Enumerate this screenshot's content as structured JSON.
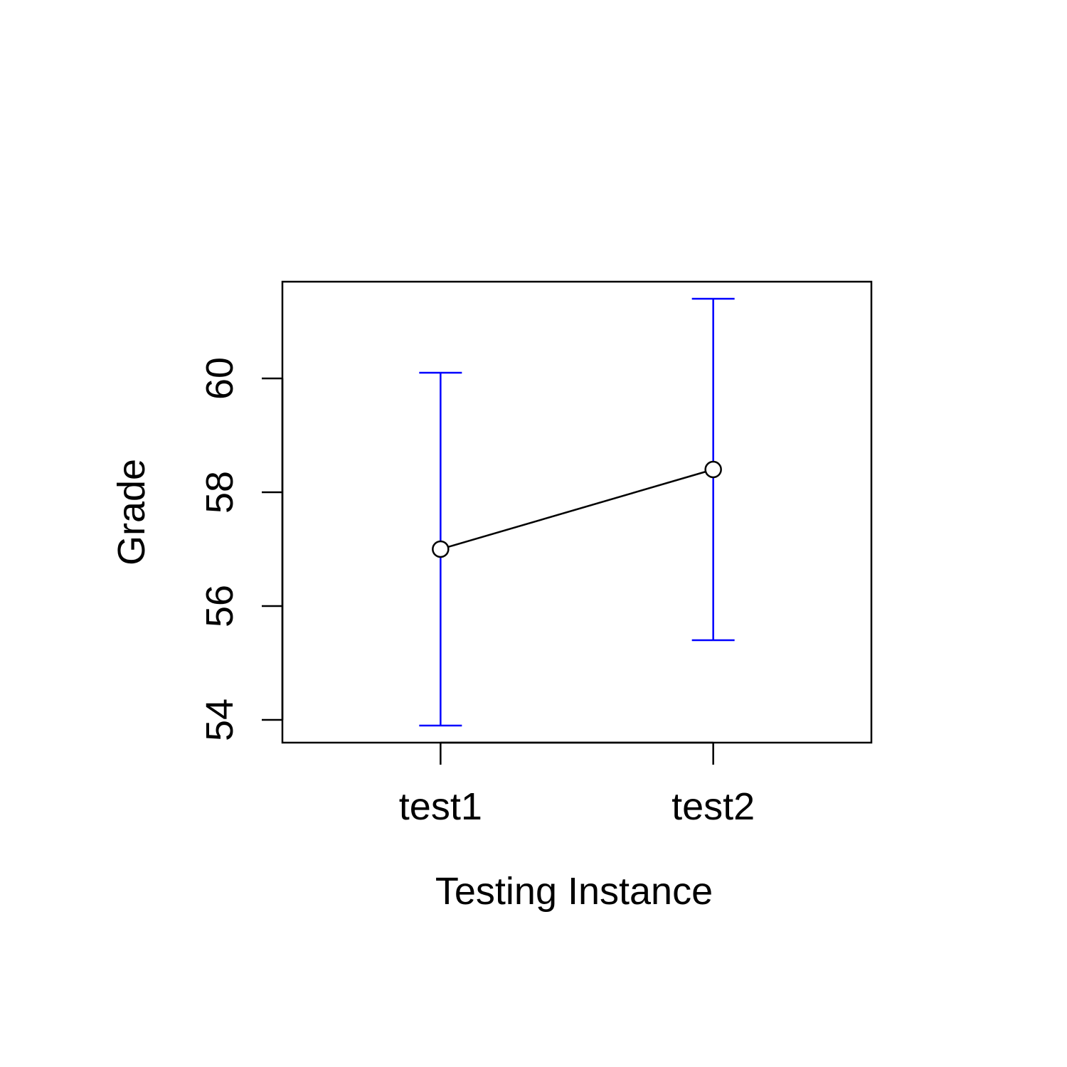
{
  "chart_data": {
    "type": "line",
    "title": "",
    "xlabel": "Testing Instance",
    "ylabel": "Grade",
    "categories": [
      "test1",
      "test2"
    ],
    "series": [
      {
        "values": [
          57.0,
          58.4
        ],
        "error_low": [
          53.9,
          55.4
        ],
        "error_high": [
          60.1,
          61.4
        ]
      }
    ],
    "yticks": [
      54,
      56,
      58,
      60
    ],
    "ylim": [
      53.6,
      61.7
    ],
    "xlim": [
      0.42,
      2.58
    ],
    "grid": false,
    "colors": {
      "line": "#000000",
      "error_bars": "#0000ff",
      "axes": "#000000"
    }
  }
}
